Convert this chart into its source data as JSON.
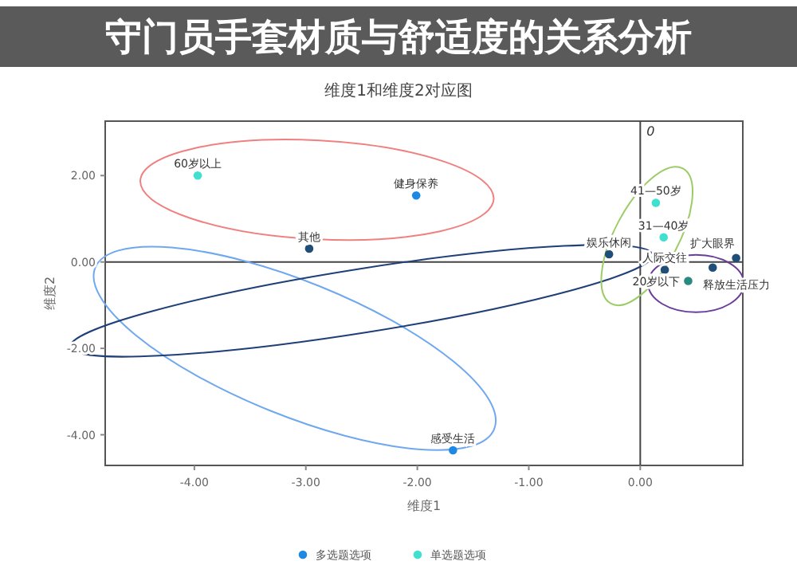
{
  "chart_data": {
    "type": "scatter",
    "title": "维度1和维度2对应图",
    "subtitle": "守门员手套材质与舒适度的关系分析",
    "xlabel": "维度1",
    "ylabel": "维度2",
    "xlim": [
      -4.8,
      0.92
    ],
    "ylim": [
      -4.71,
      3.26
    ],
    "xticks": [
      {
        "value": -4,
        "label": "-4.00"
      },
      {
        "value": -3,
        "label": "-3.00"
      },
      {
        "value": -2,
        "label": "-2.00"
      },
      {
        "value": -1,
        "label": "-1.00"
      },
      {
        "value": 0,
        "label": "0.00"
      }
    ],
    "yticks": [
      {
        "value": 2,
        "label": "2.00"
      },
      {
        "value": 0,
        "label": "0.00"
      },
      {
        "value": -2,
        "label": "-2.00"
      },
      {
        "value": -4,
        "label": "-4.00"
      }
    ],
    "grid": false,
    "legend": "bottom",
    "marker": "circle",
    "ref_lines": [
      {
        "axis": "x",
        "value": 0,
        "label": "0"
      },
      {
        "axis": "y",
        "value": 0
      }
    ],
    "series": [
      {
        "name": "多选题选项",
        "color": "#1e88e5",
        "x": [
          -2.01,
          -2.97,
          -1.68,
          -0.28,
          0.22,
          0.65,
          0.86
        ],
        "values": [
          1.54,
          0.31,
          -4.36,
          0.18,
          -0.18,
          -0.13,
          0.09
        ],
        "colors": [
          "#1e88e5",
          "#1f4e79",
          "#1e88e5",
          "#1f4e79",
          "#1f4e79",
          "#1f4e79",
          "#1f4e79"
        ]
      },
      {
        "name": "单选题选项",
        "color": "#40e0d0",
        "x": [
          -3.97,
          0.14,
          0.21,
          0.43
        ],
        "values": [
          2.0,
          1.37,
          0.57,
          -0.44
        ],
        "colors": [
          "#40e0d0",
          "#40e0d0",
          "#40e0d0",
          "#2a8a80"
        ]
      }
    ],
    "annotations": [
      {
        "text": "60岁以上",
        "x": -3.97,
        "y": 2.0
      },
      {
        "text": "健身保养",
        "x": -2.01,
        "y": 1.54
      },
      {
        "text": "其他",
        "x": -2.97,
        "y": 0.31
      },
      {
        "text": "感受生活",
        "x": -1.68,
        "y": -4.36
      },
      {
        "text": "娱乐休闲",
        "x": -0.28,
        "y": 0.18
      },
      {
        "text": "41—50岁",
        "x": 0.14,
        "y": 1.37
      },
      {
        "text": "31—40岁",
        "x": 0.21,
        "y": 0.57
      },
      {
        "text": "人际交往",
        "x": 0.22,
        "y": -0.18
      },
      {
        "text": "扩大眼界",
        "x": 0.65,
        "y": -0.13
      },
      {
        "text": "释放生活压力",
        "x": 0.86,
        "y": 0.09
      },
      {
        "text": "20岁以下",
        "x": 0.43,
        "y": -0.44
      }
    ]
  }
}
